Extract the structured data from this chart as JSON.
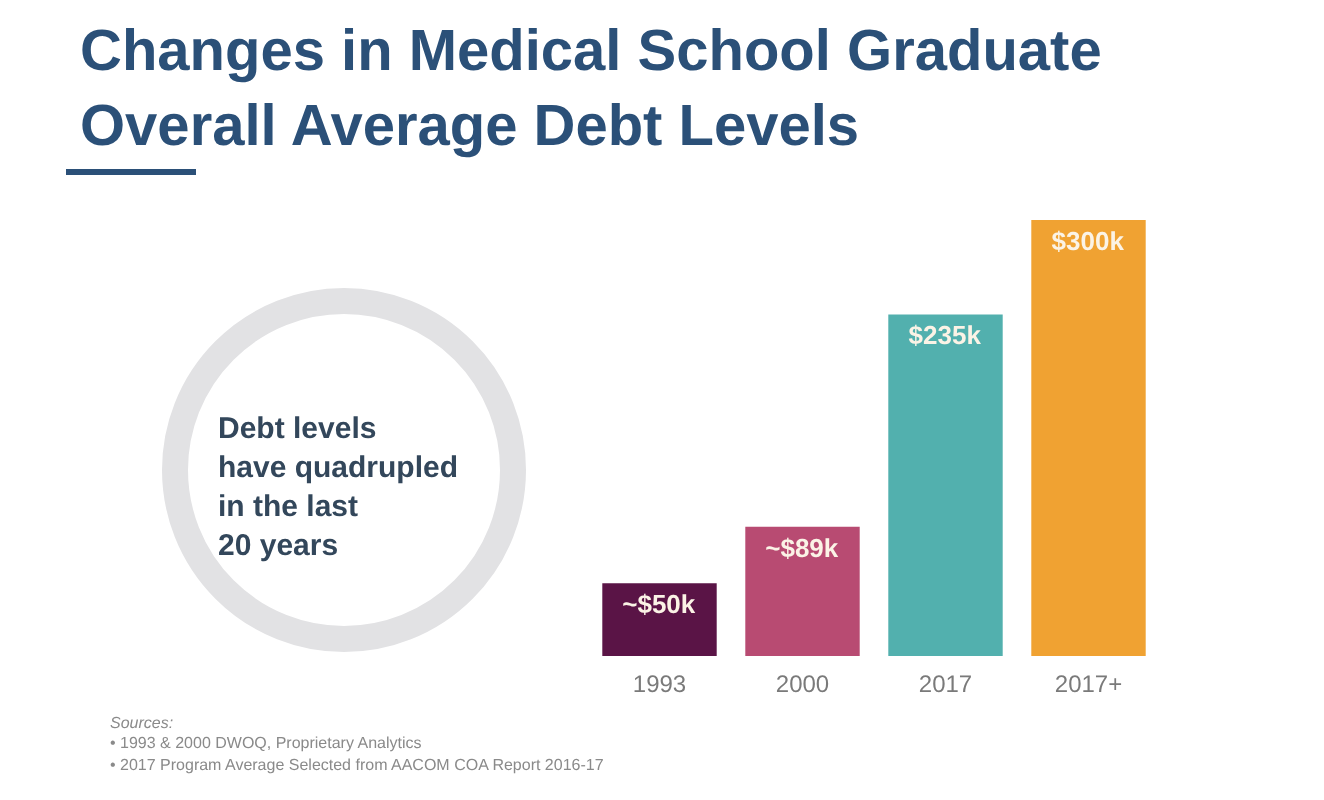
{
  "chart_data": {
    "type": "bar",
    "title": "Changes in Medical School Graduate\nOverall Average Debt Levels",
    "categories": [
      "1993",
      "2000",
      "2017",
      "2017+"
    ],
    "values": [
      50,
      89,
      235,
      300
    ],
    "value_labels": [
      "~$50k",
      "~$89k",
      "$235k",
      "$300k"
    ],
    "colors": [
      "#5a1446",
      "#b84b72",
      "#52b0ae",
      "#f0a232"
    ],
    "annotations": [
      "Debt levels\nhave quadrupled\nin the last\n20 years",
      "Sources:",
      "• 1993 & 2000 DWOQ, Proprietary Analytics",
      "• 2017 Program Average Selected from AACOM COA Report 2016-17"
    ],
    "legend": false
  }
}
